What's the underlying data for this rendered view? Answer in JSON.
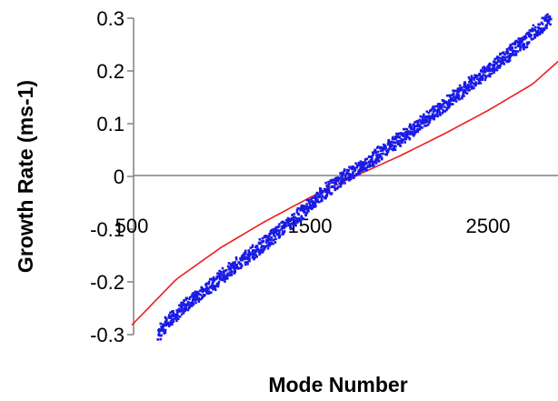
{
  "chart_data": {
    "type": "line",
    "title": "",
    "xlabel": "Mode Number",
    "ylabel": "Growth Rate (ms-1)",
    "xlim": [
      500,
      3000
    ],
    "ylim": [
      -0.3,
      0.3
    ],
    "x_ticks": [
      {
        "value": 500,
        "label": "500"
      },
      {
        "value": 1500,
        "label": "1500"
      },
      {
        "value": 2500,
        "label": "2500"
      }
    ],
    "y_ticks": [
      {
        "value": 0.3,
        "label": "0.3"
      },
      {
        "value": 0.2,
        "label": "0.2"
      },
      {
        "value": 0.1,
        "label": "0.1"
      },
      {
        "value": 0,
        "label": "0"
      },
      {
        "value": -0.1,
        "label": "-0.1"
      },
      {
        "value": -0.2,
        "label": "-0.2"
      },
      {
        "value": -0.3,
        "label": "-0.3"
      }
    ],
    "grid": false,
    "legend": null,
    "series": [
      {
        "style": "line",
        "color": "#ee1c1c",
        "x": [
          500,
          750,
          1000,
          1250,
          1500,
          1750,
          2000,
          2250,
          2500,
          2750,
          3000
        ],
        "y": [
          -0.282,
          -0.195,
          -0.135,
          -0.085,
          -0.04,
          0.0,
          0.038,
          0.08,
          0.125,
          0.175,
          0.25
        ]
      },
      {
        "style": "scatter",
        "color": "#1a1ae6",
        "x": [
          650,
          700,
          800,
          900,
          1000,
          1100,
          1200,
          1300,
          1400,
          1500,
          1600,
          1700,
          1800,
          1900,
          2000,
          2100,
          2200,
          2300,
          2400,
          2500,
          2600,
          2700,
          2800,
          2850
        ],
        "y": [
          -0.3,
          -0.275,
          -0.245,
          -0.218,
          -0.192,
          -0.165,
          -0.14,
          -0.112,
          -0.085,
          -0.055,
          -0.025,
          0.0,
          0.02,
          0.045,
          0.07,
          0.095,
          0.12,
          0.148,
          0.175,
          0.2,
          0.228,
          0.255,
          0.285,
          0.3
        ]
      }
    ]
  }
}
